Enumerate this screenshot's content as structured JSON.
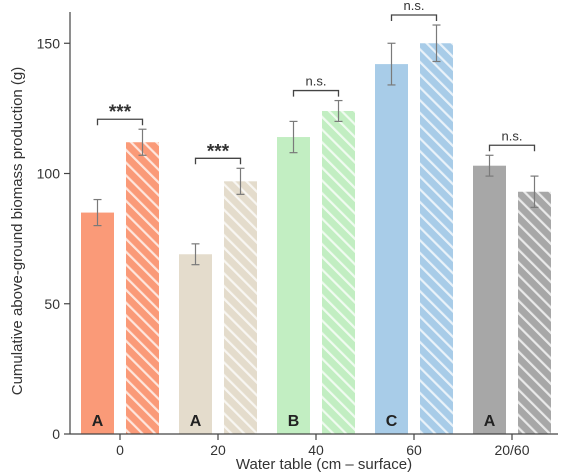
{
  "chart_data": {
    "type": "bar",
    "xlabel": "Water table (cm – surface)",
    "ylabel": "Cumulative above-ground biomass production (g)",
    "ylim": [
      0,
      162
    ],
    "yticks": [
      0,
      50,
      100,
      150
    ],
    "grid": false,
    "categories": [
      "0",
      "20",
      "40",
      "60",
      "20/60"
    ],
    "series": [
      {
        "values": [
          85,
          69,
          114,
          142,
          103
        ],
        "errors": [
          5,
          4,
          6,
          8,
          4
        ],
        "fill": "solid"
      },
      {
        "values": [
          112,
          97,
          124,
          150,
          93
        ],
        "errors": [
          5,
          5,
          4,
          7,
          6
        ],
        "fill": "hatched"
      }
    ],
    "colors": [
      "#fa9a78",
      "#e4dccc",
      "#c2eec2",
      "#a8cce8",
      "#a7a7a7"
    ],
    "significance": [
      "***",
      "***",
      "n.s.",
      "n.s.",
      "n.s."
    ],
    "group_letters": [
      "A",
      "A",
      "B",
      "C",
      "A"
    ]
  }
}
